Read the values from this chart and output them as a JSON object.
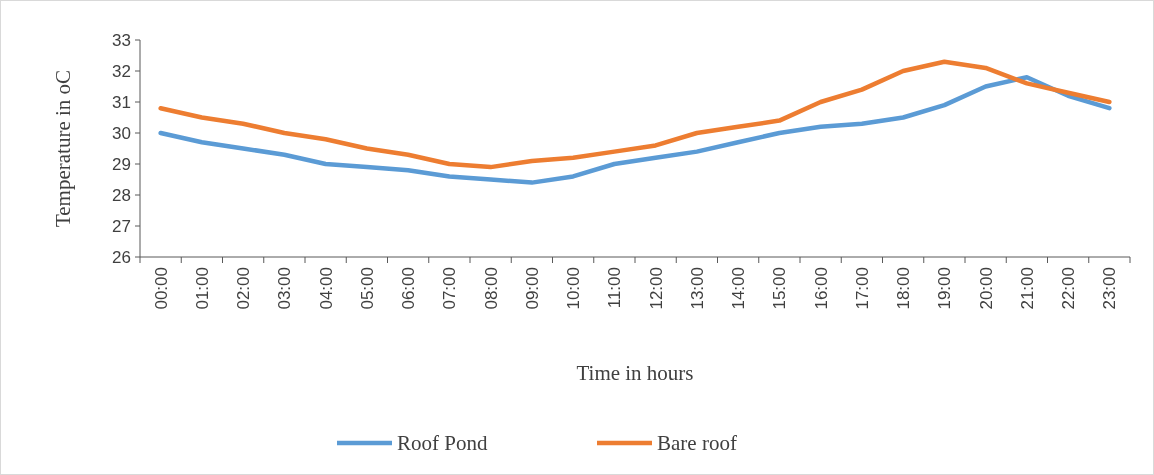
{
  "chart_data": {
    "type": "line",
    "xlabel": "Time in hours",
    "ylabel": "Temperature in oC",
    "categories": [
      "00:00",
      "01:00",
      "02:00",
      "03:00",
      "04:00",
      "05:00",
      "06:00",
      "07:00",
      "08:00",
      "09:00",
      "10:00",
      "11:00",
      "12:00",
      "13:00",
      "14:00",
      "15:00",
      "16:00",
      "17:00",
      "18:00",
      "19:00",
      "20:00",
      "21:00",
      "22:00",
      "23:00"
    ],
    "series": [
      {
        "name": "Roof Pond",
        "color": "#5b9bd5",
        "values": [
          30.0,
          29.7,
          29.5,
          29.3,
          29.0,
          28.9,
          28.8,
          28.6,
          28.5,
          28.4,
          28.6,
          29.0,
          29.2,
          29.4,
          29.7,
          30.0,
          30.2,
          30.3,
          30.5,
          30.9,
          31.5,
          31.8,
          31.2,
          30.8
        ]
      },
      {
        "name": "Bare roof",
        "color": "#ed7d31",
        "values": [
          30.8,
          30.5,
          30.3,
          30.0,
          29.8,
          29.5,
          29.3,
          29.0,
          28.9,
          29.1,
          29.2,
          29.4,
          29.6,
          30.0,
          30.2,
          30.4,
          31.0,
          31.4,
          32.0,
          32.3,
          32.1,
          31.6,
          31.3,
          31.0
        ]
      }
    ],
    "ylim": [
      26,
      33
    ],
    "yticks": [
      26,
      27,
      28,
      29,
      30,
      31,
      32,
      33
    ],
    "grid": false,
    "legend": "bottom",
    "marker": "none",
    "line_style": "solid"
  }
}
